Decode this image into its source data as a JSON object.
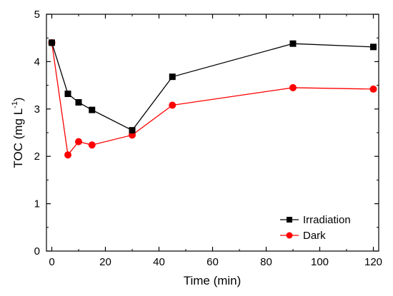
{
  "chart_data": {
    "type": "line",
    "title": "",
    "xlabel": "Time (min)",
    "ylabel_main": "TOC (mg L",
    "ylabel_sup": "-1",
    "ylabel_close": ")",
    "xlim": [
      -2,
      122
    ],
    "ylim": [
      0,
      5
    ],
    "xticks": [
      0,
      20,
      40,
      60,
      80,
      100,
      120
    ],
    "yticks": [
      0,
      1,
      2,
      3,
      4,
      5
    ],
    "grid": false,
    "legend_position": "bottom-right",
    "series": [
      {
        "name": "Irradiation",
        "color": "#000000",
        "marker": "square",
        "x": [
          0,
          6,
          10,
          15,
          30,
          45,
          90,
          120
        ],
        "y": [
          4.4,
          3.32,
          3.14,
          2.98,
          2.55,
          3.68,
          4.38,
          4.31
        ]
      },
      {
        "name": "Dark",
        "color": "#ff0000",
        "marker": "circle",
        "x": [
          0,
          6,
          10,
          15,
          30,
          45,
          90,
          120
        ],
        "y": [
          4.4,
          2.03,
          2.31,
          2.24,
          2.45,
          3.08,
          3.45,
          3.42
        ]
      }
    ]
  }
}
